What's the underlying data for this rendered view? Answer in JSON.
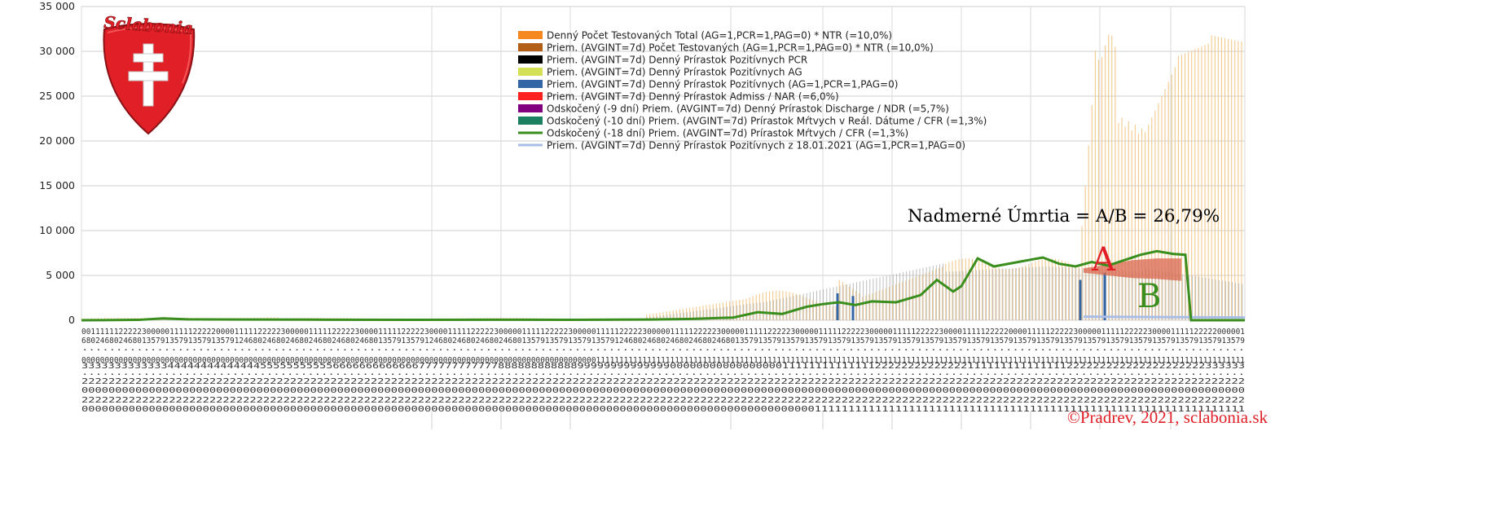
{
  "logo": {
    "text": "Sclabonia",
    "color": "#e01f26"
  },
  "copyright": "©Pradrev, 2021, sclabonia.sk",
  "chart_data": {
    "type": "bar+line",
    "y_ticks": [
      "35 000",
      "30 000",
      "25 000",
      "20 000",
      "15 000",
      "10 000",
      "5 000",
      "0"
    ],
    "ylim": [
      0,
      35000
    ],
    "grid": true,
    "legend_position": "top-center",
    "legend": [
      {
        "name": "Denný Počet Testovaných Total (AG=1,PCR=1,PAG=0) * NTR (=10,0%)",
        "color": "#f5891f"
      },
      {
        "name": "Priem. (AVGINT=7d) Počet Testovaných (AG=1,PCR=1,PAG=0) * NTR (=10,0%)",
        "color": "#b35e16"
      },
      {
        "name": "Priem. (AVGINT=7d) Denný Prírastok Pozitívnych PCR",
        "color": "#000000"
      },
      {
        "name": "Priem. (AVGINT=7d) Denný Prírastok Pozitívnych AG",
        "color": "#d4e157"
      },
      {
        "name": "Priem. (AVGINT=7d) Denný Prírastok Pozitívnych (AG=1,PCR=1,PAG=0)",
        "color": "#3465a4"
      },
      {
        "name": "Priem. (AVGINT=7d) Denný Prírastok Admiss / NAR (=6,0%)",
        "color": "#ff2020"
      },
      {
        "name": "Odskočený (-9 dní) Priem. (AVGINT=7d) Denný Prírastok Discharge / NDR (=5,7%)",
        "color": "#800080"
      },
      {
        "name": "Odskočený (-10 dní) Priem. (AVGINT=7d) Prírastok Mŕtvych v Reál. Dátume / CFR (=1,3%)",
        "color": "#1a8060"
      },
      {
        "name": "Odskočený (-18 dní) Priem. (AVGINT=7d) Prírastok Mŕtvych / CFR (=1,3%)",
        "color": "#3a8e1e"
      },
      {
        "name": "Priem. (AVGINT=7d) Denný Prírastok Pozitívnych z 18.01.2021 (AG=1,PCR=1,PAG=0)",
        "color": "#a9bde6"
      }
    ],
    "annotation_title": "Nadmerné Úmrtia = A/B = 26,79%",
    "label_a": "A",
    "label_b": "B",
    "x_tick_row1": "00111111222223000001111122222000011111222223000001111122222300001111122222300001111122222300000111112222230000011111222223000001111122222300000111112222230000011111222223000001111122222300001111122222000011111222223000001111122222300001111122222000001",
    "x_tick_row2": "68024680246801357913579135791357912468024680246802468024680246801357913579124680246802468024680135791357913579135791246802468024680246802468013579135791357913579135791357913579135791357913579135791357913579135791357913579135791357913579135791357913579",
    "x_tick_row3": "00000000000000000000000000000000000000000000000000000000000000000000000000000000000000000000000000000000000000011111111111111111111111111111111111111111111111111111111111111111111111111111111111111111111111111111111111111111111111111111111111111111111",
    "x_tick_row4": "33333333333334444444444444455555555555666666666666677777777777788888888888899999999999999000000000000000001111111111111122222222222222111111111111111222222222222222222222333333",
    "x_tick_row5": "22222222222222222222222222222222222222222222222222222222222222222222222222222222222222222222222222222222222222222222222222222222222222222222222222222222222222222222222222222",
    "x_tick_row6": "00000000000000000000000000000000000000000000000000000000000000000000000000000000000000000000000000000000000000000000000000000000000000000000000000000000000000000000000000000",
    "x_tick_row7": "22222222222222222222222222222222222222222222222222222222222222222222222222222222222222222222222222222222222222222222222222222222222222222222222222222222222222222222222222222",
    "x_tick_row8": "00000000000000000000000000000000000000000000000000000000000000000000000000000000000000000000000000000000000001111111111111111111111111111111111111111111111111111111111111111"
  }
}
